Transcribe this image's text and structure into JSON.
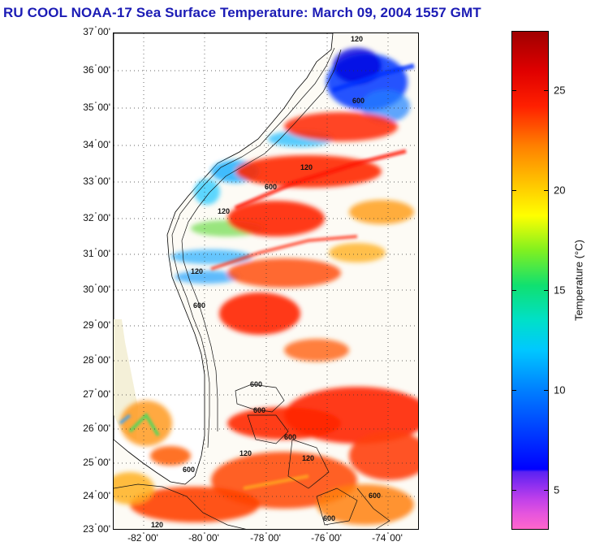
{
  "title": "RU COOL  NOAA-17  Sea Surface Temperature:  March 09, 2004 1557 GMT",
  "map": {
    "lat_labels": [
      "37",
      "36",
      "35",
      "34",
      "33",
      "32",
      "31",
      "30",
      "29",
      "28",
      "27",
      "26",
      "25",
      "24",
      "23"
    ],
    "lat_minutes": "00'",
    "lon_labels": [
      "-82",
      "-80",
      "-78",
      "-76",
      "-74"
    ],
    "lon_minutes": "00'",
    "isobath_labels": [
      "120",
      "600"
    ],
    "isobath_label_list": [
      "120",
      "600",
      "120",
      "600",
      "120",
      "120",
      "600",
      "600",
      "600",
      "600",
      "120",
      "600",
      "120",
      "600",
      "120",
      "600"
    ]
  },
  "colorbar": {
    "title": "Temperature (°C)",
    "ticks": [
      "25",
      "20",
      "15",
      "10",
      "5"
    ],
    "colors": {
      "min": "#ff66cc",
      "low": "#0000ff",
      "mid": "#ffff00",
      "high": "#ff2000",
      "max": "#a00000"
    }
  }
}
